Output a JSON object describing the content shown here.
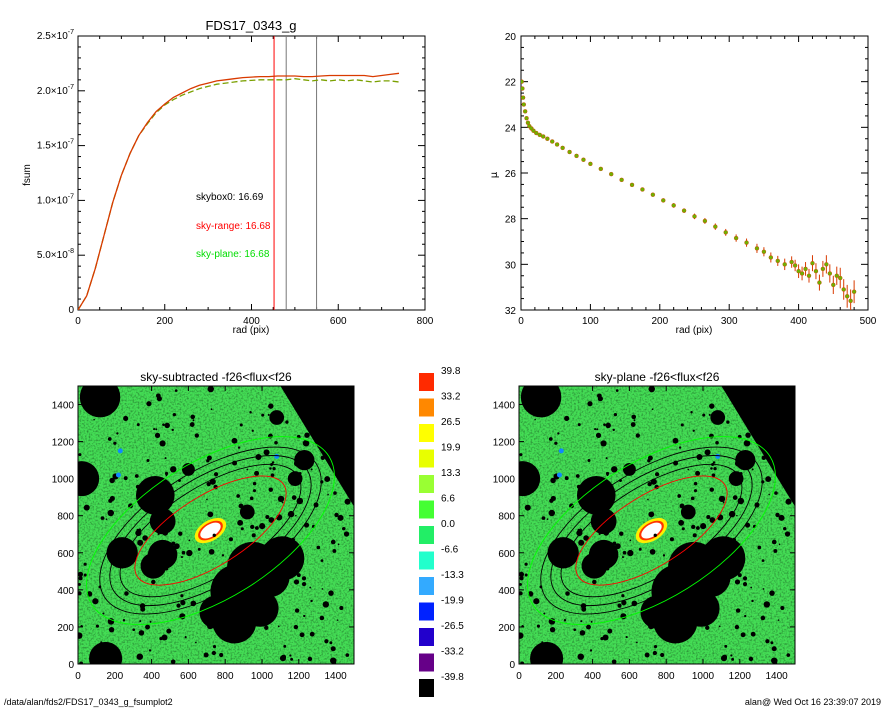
{
  "chart_data": [
    {
      "type": "line",
      "title": "FDS17_0343_g",
      "xlabel": "rad (pix)",
      "ylabel": "fsum",
      "xlim": [
        0,
        800
      ],
      "ylim": [
        0,
        2.5e-07
      ],
      "xticks": [
        "0",
        "200",
        "400",
        "600",
        "800"
      ],
      "yticks": [
        {
          "m": "0",
          "e": ""
        },
        {
          "m": "5.0×10",
          "e": "-8"
        },
        {
          "m": "1.0×10",
          "e": "-7"
        },
        {
          "m": "1.5×10",
          "e": "-7"
        },
        {
          "m": "2.0×10",
          "e": "-7"
        },
        {
          "m": "2.5×10",
          "e": "-7"
        }
      ],
      "series": [
        {
          "color": "#d93a00",
          "style": "solid",
          "x": [
            0,
            20,
            40,
            60,
            80,
            100,
            120,
            140,
            160,
            180,
            200,
            220,
            240,
            260,
            280,
            300,
            320,
            340,
            360,
            380,
            400,
            420,
            440,
            460,
            480,
            500,
            520,
            540,
            560,
            580,
            600,
            620,
            640,
            660,
            680,
            700,
            720,
            740
          ],
          "y": [
            0,
            1.3e-08,
            3.8e-08,
            6.8e-08,
            9.8e-08,
            1.23e-07,
            1.43e-07,
            1.59e-07,
            1.71e-07,
            1.81e-07,
            1.88e-07,
            1.94e-07,
            1.98e-07,
            2.02e-07,
            2.05e-07,
            2.07e-07,
            2.09e-07,
            2.1e-07,
            2.11e-07,
            2.12e-07,
            2.125e-07,
            2.13e-07,
            2.13e-07,
            2.135e-07,
            2.135e-07,
            2.135e-07,
            2.13e-07,
            2.13e-07,
            2.135e-07,
            2.14e-07,
            2.14e-07,
            2.14e-07,
            2.14e-07,
            2.14e-07,
            2.13e-07,
            2.14e-07,
            2.15e-07,
            2.16e-07
          ]
        },
        {
          "color": "#7aa000",
          "style": "dashed",
          "x": [
            0,
            20,
            40,
            60,
            80,
            100,
            120,
            140,
            160,
            180,
            200,
            220,
            240,
            260,
            280,
            300,
            320,
            340,
            360,
            380,
            400,
            420,
            440,
            460,
            480,
            500,
            520,
            540,
            560,
            580,
            600,
            620,
            640,
            660,
            680,
            700,
            720,
            740
          ],
          "y": [
            0,
            1.3e-08,
            3.8e-08,
            6.8e-08,
            9.8e-08,
            1.23e-07,
            1.43e-07,
            1.59e-07,
            1.7e-07,
            1.8e-07,
            1.87e-07,
            1.92e-07,
            1.96e-07,
            1.99e-07,
            2.02e-07,
            2.04e-07,
            2.06e-07,
            2.07e-07,
            2.08e-07,
            2.09e-07,
            2.095e-07,
            2.1e-07,
            2.1e-07,
            2.1e-07,
            2.1e-07,
            2.11e-07,
            2.1e-07,
            2.09e-07,
            2.1e-07,
            2.09e-07,
            2.1e-07,
            2.09e-07,
            2.1e-07,
            2.09e-07,
            2.08e-07,
            2.09e-07,
            2.09e-07,
            2.08e-07
          ]
        }
      ],
      "vlines": [
        {
          "x": 452,
          "color": "#ff0000"
        },
        {
          "x": 480,
          "color": "#777777"
        },
        {
          "x": 550,
          "color": "#777777"
        }
      ],
      "annotations": [
        {
          "text": "skybox0: 16.69",
          "color": "#000000"
        },
        {
          "text": "sky-range: 16.68",
          "color": "#ff0000"
        },
        {
          "text": "sky-plane: 16.68",
          "color": "#00dd00"
        }
      ]
    },
    {
      "type": "scatter",
      "title": "",
      "xlabel": "rad (pix)",
      "ylabel": "μ",
      "xlim": [
        0,
        500
      ],
      "ylim": [
        32,
        20
      ],
      "xticks": [
        "0",
        "100",
        "200",
        "300",
        "400",
        "500"
      ],
      "yticks": [
        "20",
        "22",
        "24",
        "26",
        "28",
        "30",
        "32"
      ],
      "series": [
        {
          "color": "#6fb000",
          "errcolor": "#d93a00",
          "x": [
            1,
            2,
            3,
            4,
            6,
            8,
            10,
            12,
            15,
            18,
            22,
            27,
            32,
            38,
            45,
            52,
            60,
            70,
            80,
            90,
            100,
            115,
            130,
            145,
            160,
            175,
            190,
            205,
            220,
            235,
            250,
            265,
            280,
            295,
            310,
            325,
            340,
            350,
            360,
            370,
            380,
            390,
            395,
            400,
            405,
            410,
            415,
            420,
            425,
            430,
            435,
            440,
            445,
            450,
            455,
            460,
            465,
            470,
            475,
            480
          ],
          "y": [
            22.0,
            22.3,
            22.7,
            23.0,
            23.3,
            23.6,
            23.8,
            23.95,
            24.05,
            24.15,
            24.25,
            24.33,
            24.4,
            24.5,
            24.62,
            24.75,
            24.9,
            25.08,
            25.25,
            25.42,
            25.6,
            25.82,
            26.05,
            26.3,
            26.52,
            26.72,
            26.95,
            27.2,
            27.42,
            27.65,
            27.9,
            28.1,
            28.35,
            28.6,
            28.85,
            29.05,
            29.3,
            29.45,
            29.7,
            29.85,
            30.0,
            29.9,
            30.05,
            30.3,
            30.4,
            30.2,
            30.5,
            29.95,
            30.3,
            30.8,
            30.2,
            30.0,
            30.4,
            30.9,
            30.5,
            30.6,
            31.1,
            31.4,
            31.6,
            31.2
          ],
          "err": [
            0.02,
            0.02,
            0.02,
            0.02,
            0.02,
            0.02,
            0.02,
            0.02,
            0.02,
            0.02,
            0.02,
            0.02,
            0.02,
            0.03,
            0.03,
            0.03,
            0.03,
            0.03,
            0.04,
            0.04,
            0.04,
            0.05,
            0.05,
            0.06,
            0.06,
            0.07,
            0.08,
            0.09,
            0.1,
            0.1,
            0.12,
            0.13,
            0.14,
            0.15,
            0.16,
            0.18,
            0.2,
            0.2,
            0.22,
            0.22,
            0.25,
            0.25,
            0.25,
            0.3,
            0.3,
            0.3,
            0.3,
            0.35,
            0.35,
            0.35,
            0.35,
            0.4,
            0.4,
            0.4,
            0.4,
            0.45,
            0.45,
            0.5,
            0.5,
            0.5
          ]
        }
      ]
    },
    {
      "type": "heatmap",
      "title": "sky-subtracted -f26<flux<f26",
      "xlim": [
        0,
        1500
      ],
      "ylim": [
        0,
        1500
      ],
      "xticks": [
        "0",
        "200",
        "400",
        "600",
        "800",
        "1000",
        "1200",
        "1400"
      ],
      "yticks": [
        "0",
        "200",
        "400",
        "600",
        "800",
        "1000",
        "1200",
        "1400"
      ],
      "masks": [
        {
          "x": 120,
          "y": 1440,
          "r": 110
        },
        {
          "x": 20,
          "y": 1000,
          "r": 95
        },
        {
          "x": 150,
          "y": 30,
          "r": 90
        },
        {
          "x": 420,
          "y": 910,
          "r": 105
        },
        {
          "x": 460,
          "y": 770,
          "r": 70
        },
        {
          "x": 460,
          "y": 590,
          "r": 80
        },
        {
          "x": 240,
          "y": 600,
          "r": 85
        },
        {
          "x": 410,
          "y": 530,
          "r": 70
        },
        {
          "x": 950,
          "y": 520,
          "r": 140
        },
        {
          "x": 1110,
          "y": 570,
          "r": 120
        },
        {
          "x": 870,
          "y": 390,
          "r": 150
        },
        {
          "x": 990,
          "y": 300,
          "r": 100
        },
        {
          "x": 850,
          "y": 230,
          "r": 120
        },
        {
          "x": 750,
          "y": 280,
          "r": 90
        },
        {
          "x": 1040,
          "y": 470,
          "r": 110
        },
        {
          "x": 1230,
          "y": 1100,
          "r": 55
        },
        {
          "x": 1180,
          "y": 1000,
          "r": 40
        },
        {
          "x": 920,
          "y": 820,
          "r": 40
        },
        {
          "x": 600,
          "y": 1050,
          "r": 35
        },
        {
          "x": 1080,
          "y": 1330,
          "r": 40
        }
      ],
      "ellipses": [
        {
          "a": 560,
          "b": 240,
          "color": "#000000"
        },
        {
          "a": 620,
          "b": 285,
          "color": "#000000"
        },
        {
          "a": 680,
          "b": 325,
          "color": "#000000"
        },
        {
          "a": 470,
          "b": 190,
          "color": "#ff0000"
        },
        {
          "a": 760,
          "b": 370,
          "color": "#00ff00"
        }
      ]
    },
    {
      "type": "colorbar",
      "labels": [
        "39.8",
        "33.2",
        "26.5",
        "19.9",
        "13.3",
        "6.6",
        "0.0",
        "-6.6",
        "-13.3",
        "-19.9",
        "-26.5",
        "-33.2",
        "-39.8"
      ],
      "colors": [
        "#ff2a00",
        "#ff8800",
        "#ffff00",
        "#e8ff00",
        "#99ff33",
        "#44ff33",
        "#22ee66",
        "#22ffcc",
        "#33aaff",
        "#0022ff",
        "#2200cc",
        "#660088",
        "#000000"
      ]
    },
    {
      "type": "heatmap",
      "title": "sky-plane -f26<flux<f26",
      "xlim": [
        0,
        1500
      ],
      "ylim": [
        0,
        1500
      ],
      "xticks": [
        "0",
        "200",
        "400",
        "600",
        "800",
        "1000",
        "1200",
        "1400"
      ],
      "yticks": [
        "0",
        "200",
        "400",
        "600",
        "800",
        "1000",
        "1200",
        "1400"
      ]
    }
  ],
  "footer": {
    "left": "/data/alan/fds2/FDS17_0343_g_fsumplot2",
    "right": "alan@  Wed Oct 16 23:39:07 2019"
  }
}
